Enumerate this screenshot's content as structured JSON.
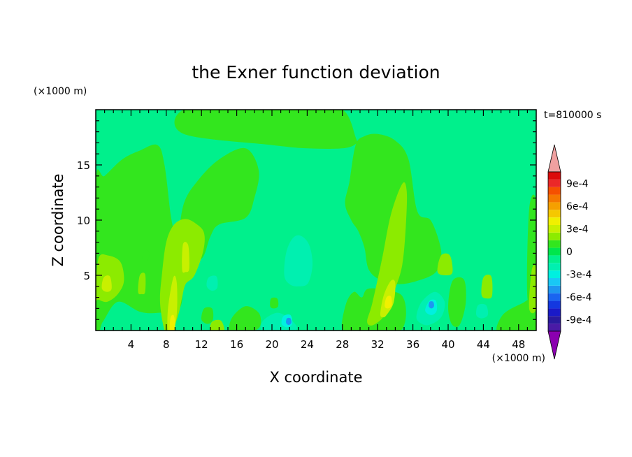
{
  "chart_data": {
    "type": "heatmap",
    "title": "the Exner function deviation",
    "xlabel": "X coordinate",
    "ylabel": "Z coordinate",
    "x_unit": "(×1000 m)",
    "y_unit": "(×1000 m)",
    "time_label": "t=810000 s",
    "xlim": [
      0,
      50
    ],
    "ylim": [
      0,
      20
    ],
    "x_ticks": [
      4,
      8,
      12,
      16,
      20,
      24,
      28,
      32,
      36,
      40,
      44,
      48
    ],
    "y_ticks": [
      5,
      10,
      15
    ],
    "colorbar": {
      "labels": [
        "9e-4",
        "6e-4",
        "3e-4",
        "0",
        "-3e-4",
        "-6e-4",
        "-9e-4"
      ],
      "label_values": [
        0.0009,
        0.0006,
        0.0003,
        0,
        -0.0003,
        -0.0006,
        -0.0009
      ],
      "levels": [
        -0.0011,
        -0.001,
        -0.0009,
        -0.0008,
        -0.0007,
        -0.0006,
        -0.0005,
        -0.0004,
        -0.0003,
        -0.0002,
        -0.0001,
        0,
        0.0001,
        0.0002,
        0.0003,
        0.0004,
        0.0005,
        0.0006,
        0.0007,
        0.0008,
        0.0009,
        0.001,
        0.0011
      ],
      "colors_low_to_high": [
        "#8b00b0",
        "#4a1aa6",
        "#2a1a9e",
        "#1a1ac8",
        "#1438e0",
        "#1a64f0",
        "#1e96f0",
        "#19c8f5",
        "#00f0e0",
        "#00f0b0",
        "#00f08c",
        "#00e64b",
        "#33e61e",
        "#8ceb00",
        "#c8f000",
        "#f0f000",
        "#f5c800",
        "#f5a000",
        "#f57800",
        "#f55000",
        "#eb2828",
        "#dc0a0a",
        "#f0a0a0"
      ]
    },
    "background_color": "#00f08c",
    "regions": [
      {
        "level": -0.0001,
        "x": [
          17.5,
          17.0,
          18.5,
          20.0,
          24.0,
          28.0,
          30.5,
          31.0,
          30.0,
          27.0,
          24.0,
          21.0
        ],
        "y": [
          0.0,
          1.5,
          2.2,
          1.8,
          1.3,
          1.3,
          1.8,
          0.8,
          0.0,
          0.0,
          0.0,
          0.0
        ]
      },
      {
        "level": -0.0001,
        "x": [
          20.0,
          20.6,
          22.0,
          23.5,
          25.2,
          26.0,
          25.8,
          25.0,
          24.0,
          22.5,
          21.2,
          20.3
        ],
        "y": [
          4.5,
          7.5,
          9.8,
          10.7,
          10.0,
          8.0,
          5.5,
          3.5,
          2.5,
          2.4,
          2.8,
          3.5
        ]
      },
      {
        "level": -0.0001,
        "x": [
          35.5,
          36.2,
          38.0,
          40.0,
          40.8,
          40.3,
          38.5,
          36.5
        ],
        "y": [
          1.5,
          3.5,
          4.7,
          4.0,
          2.2,
          0.6,
          0.2,
          0.5
        ]
      },
      {
        "level": -0.0001,
        "x": [
          12.0,
          12.2,
          13.5,
          14.5,
          14.5,
          13.2
        ],
        "y": [
          3.5,
          5.0,
          6.0,
          5.3,
          3.8,
          3.2
        ]
      },
      {
        "level": -0.0001,
        "x": [
          42.5,
          43.0,
          44.5,
          45.0,
          44.2,
          42.8
        ],
        "y": [
          1.5,
          2.8,
          2.8,
          1.5,
          0.6,
          0.8
        ]
      },
      {
        "level": -0.0001,
        "x": [
          3.0,
          3.2,
          4.0,
          4.1,
          3.5
        ],
        "y": [
          1.5,
          2.5,
          2.5,
          1.4,
          1.0
        ]
      },
      {
        "level": -0.0001,
        "x": [
          24.3,
          24.4,
          25.5,
          25.7,
          25.0
        ],
        "y": [
          3.8,
          5.0,
          4.7,
          3.8,
          3.5
        ]
      },
      {
        "level": -0.0001,
        "x": [
          10.6,
          10.8,
          11.7,
          11.8,
          11.2
        ],
        "y": [
          1.2,
          2.2,
          2.2,
          1.2,
          1.0
        ]
      },
      {
        "level": -0.0001,
        "x": [
          0.0,
          1.3,
          1.3,
          0.0
        ],
        "y": [
          0.3,
          0.3,
          1.0,
          1.0
        ]
      },
      {
        "level": -0.0001,
        "x": [
          26.5,
          26.7,
          27.8,
          27.9,
          27.2
        ],
        "y": [
          1.5,
          2.5,
          2.5,
          1.5,
          1.2
        ]
      },
      {
        "level": -0.0001,
        "x": [
          44.2,
          44.6,
          46.8,
          48.3,
          48.0,
          45.5
        ],
        "y": [
          3.0,
          4.8,
          5.2,
          4.2,
          3.0,
          2.7
        ]
      },
      {
        "level": -0.0001,
        "x": [
          29.6,
          29.8,
          30.6,
          30.7,
          30.1
        ],
        "y": [
          6.5,
          7.5,
          7.6,
          6.5,
          6.2
        ]
      },
      {
        "level": -0.0002,
        "x": [
          21.4,
          21.6,
          22.3,
          23.2,
          24.2,
          24.6,
          24.1,
          23.0,
          22.0
        ],
        "y": [
          5.0,
          7.0,
          8.3,
          8.6,
          7.8,
          6.0,
          4.3,
          4.0,
          4.2
        ]
      },
      {
        "level": -0.0002,
        "x": [
          36.4,
          37.0,
          38.5,
          39.6,
          39.2,
          37.8,
          36.8
        ],
        "y": [
          1.3,
          2.6,
          3.5,
          2.6,
          1.2,
          0.5,
          0.7
        ]
      },
      {
        "level": -0.0002,
        "x": [
          18.8,
          19.0,
          20.5,
          21.8,
          22.8,
          22.6,
          21.5,
          19.6
        ],
        "y": [
          0.0,
          0.9,
          1.6,
          1.2,
          0.4,
          0.0,
          0.0,
          0.0
        ]
      },
      {
        "level": -0.0002,
        "x": [
          43.2,
          43.4,
          44.3,
          44.5,
          43.8
        ],
        "y": [
          1.4,
          2.3,
          2.3,
          1.4,
          1.1
        ]
      },
      {
        "level": -0.0002,
        "x": [
          12.6,
          12.8,
          13.7,
          13.8,
          13.2
        ],
        "y": [
          4.0,
          4.8,
          4.9,
          3.9,
          3.6
        ]
      },
      {
        "level": -0.0003,
        "x": [
          37.4,
          37.9,
          38.6,
          38.7,
          38.1
        ],
        "y": [
          1.8,
          2.7,
          2.7,
          1.8,
          1.4
        ]
      },
      {
        "level": -0.0003,
        "x": [
          21.1,
          21.3,
          22.1,
          22.3,
          21.7
        ],
        "y": [
          0.6,
          1.3,
          1.4,
          0.6,
          0.3
        ]
      },
      {
        "level": -0.0005,
        "x": [
          37.8,
          37.9,
          38.3,
          38.4,
          38.1
        ],
        "y": [
          2.2,
          2.6,
          2.6,
          2.2,
          2.0
        ]
      },
      {
        "level": -0.0005,
        "x": [
          21.6,
          21.7,
          22.1,
          22.2,
          21.9
        ],
        "y": [
          0.7,
          1.1,
          1.1,
          0.7,
          0.5
        ]
      },
      {
        "level": 0.0001,
        "x": [
          10.0,
          9.5,
          10.0,
          11.5,
          14.0,
          17.0,
          18.5,
          18.0,
          17.0,
          14.0,
          13.0,
          12.0
        ],
        "y": [
          6.5,
          8.5,
          11.5,
          13.5,
          15.5,
          16.5,
          14.5,
          12.0,
          10.2,
          9.6,
          8.5,
          6.5
        ]
      },
      {
        "level": 0.0001,
        "x": [
          0.0,
          0.0,
          1.0,
          3.0,
          5.0,
          7.0,
          7.8,
          8.5,
          9.0,
          9.3,
          9.8,
          9.5,
          7.0,
          5.0,
          2.5,
          0.8
        ],
        "y": [
          0.0,
          13.5,
          14.0,
          15.5,
          16.3,
          16.8,
          15.0,
          10.5,
          8.5,
          6.5,
          4.5,
          2.0,
          1.6,
          1.7,
          2.6,
          0.8
        ]
      },
      {
        "level": 0.0001,
        "x": [
          10.0,
          10.0,
          17.0,
          21.0,
          24.0,
          28.0,
          29.5,
          29.5,
          28.0,
          24.0,
          20.0
        ],
        "y": [
          17.8,
          20.0,
          20.0,
          20.0,
          20.0,
          20.0,
          17.5,
          16.9,
          16.5,
          16.5,
          16.8
        ]
      },
      {
        "level": 0.0001,
        "x": [
          29.0,
          28.3,
          28.8,
          29.5,
          30.5,
          32.0,
          34.0,
          35.5,
          36.5,
          38.0,
          39.0,
          39.2,
          38.5,
          36.5,
          34.5,
          32.5,
          31.0,
          30.5,
          29.8
        ],
        "y": [
          10.0,
          11.5,
          13.5,
          16.8,
          17.6,
          17.8,
          17.2,
          15.5,
          10.8,
          10.0,
          8.0,
          6.5,
          5.2,
          4.5,
          4.2,
          4.5,
          5.5,
          7.5,
          9.0
        ]
      },
      {
        "level": 0.0001,
        "x": [
          28.0,
          28.4,
          29.3,
          30.2,
          31.0,
          34.0,
          35.0,
          35.2,
          34.6,
          33.0,
          31.5,
          30.0
        ],
        "y": [
          0.0,
          2.4,
          3.5,
          3.0,
          3.8,
          3.5,
          2.8,
          1.2,
          0.0,
          0.0,
          0.0,
          0.0
        ]
      },
      {
        "level": 0.0001,
        "x": [
          45.5,
          46.3,
          48.5,
          50.0,
          50.0,
          48.8,
          47.0
        ],
        "y": [
          0.0,
          1.5,
          2.5,
          3.0,
          0.0,
          0.0,
          0.0
        ]
      },
      {
        "level": 0.0001,
        "x": [
          15.2,
          15.5,
          17.0,
          18.5,
          18.7,
          18.0,
          16.5
        ],
        "y": [
          0.0,
          1.2,
          2.2,
          1.6,
          0.5,
          0.0,
          0.0
        ]
      },
      {
        "level": 0.0001,
        "x": [
          40.0,
          40.5,
          41.8,
          42.0,
          41.3,
          40.4
        ],
        "y": [
          2.2,
          4.5,
          4.6,
          2.5,
          0.5,
          0.6
        ]
      },
      {
        "level": 0.0001,
        "x": [
          49.0,
          49.2,
          50.0,
          50.0
        ],
        "y": [
          3.0,
          11.0,
          11.5,
          3.0
        ]
      },
      {
        "level": 0.0001,
        "x": [
          12.0,
          12.3,
          13.2,
          13.3,
          12.7
        ],
        "y": [
          1.0,
          2.0,
          2.0,
          1.0,
          0.6
        ]
      },
      {
        "level": 0.0002,
        "x": [
          7.8,
          7.3,
          7.5,
          8.0,
          8.9,
          10.2,
          11.5,
          12.3,
          12.2,
          11.2,
          10.2,
          9.8,
          9.4,
          8.7,
          8.2
        ],
        "y": [
          0.0,
          2.5,
          5.0,
          8.0,
          9.6,
          10.1,
          9.6,
          8.8,
          7.2,
          5.0,
          4.2,
          3.0,
          1.5,
          0.0,
          0.0
        ]
      },
      {
        "level": 0.0002,
        "x": [
          0.0,
          0.3,
          1.4,
          2.8,
          3.2,
          2.5,
          1.3,
          0.3
        ],
        "y": [
          3.0,
          6.5,
          6.8,
          6.2,
          4.5,
          3.3,
          2.6,
          2.8
        ]
      },
      {
        "level": 0.0002,
        "x": [
          30.8,
          31.4,
          32.5,
          33.5,
          34.8,
          35.3,
          35.2,
          34.8,
          34.0,
          32.9,
          31.5
        ],
        "y": [
          0.8,
          2.5,
          6.5,
          10.5,
          13.3,
          12.6,
          9.5,
          6.0,
          3.8,
          1.5,
          0.5
        ]
      },
      {
        "level": 0.0002,
        "x": [
          38.8,
          39.2,
          40.2,
          40.5,
          39.8
        ],
        "y": [
          5.3,
          6.8,
          6.8,
          5.3,
          5.0
        ]
      },
      {
        "level": 0.0002,
        "x": [
          43.8,
          44.0,
          44.9,
          45.0,
          44.5
        ],
        "y": [
          3.2,
          4.8,
          4.9,
          3.2,
          2.9
        ]
      },
      {
        "level": 0.0002,
        "x": [
          4.8,
          5.0,
          5.6,
          5.6,
          5.2
        ],
        "y": [
          3.5,
          5.0,
          5.1,
          3.5,
          3.3
        ]
      },
      {
        "level": 0.0002,
        "x": [
          49.2,
          49.5,
          50.0,
          50.0
        ],
        "y": [
          2.0,
          5.5,
          5.5,
          2.0
        ]
      },
      {
        "level": 0.0002,
        "x": [
          13.0,
          13.2,
          14.2,
          14.6,
          14.0
        ],
        "y": [
          0.0,
          0.8,
          0.9,
          0.0,
          0.0
        ]
      },
      {
        "level": 0.0003,
        "x": [
          8.2,
          8.2,
          8.8,
          9.2,
          9.2,
          8.8
        ],
        "y": [
          0.0,
          2.0,
          4.8,
          4.3,
          1.5,
          0.0
        ]
      },
      {
        "level": 0.0003,
        "x": [
          9.8,
          9.9,
          10.5,
          10.6,
          10.2
        ],
        "y": [
          5.5,
          7.8,
          7.7,
          5.6,
          5.3
        ]
      },
      {
        "level": 0.0003,
        "x": [
          32.3,
          32.7,
          33.5,
          34.0,
          33.8,
          33.0,
          32.6
        ],
        "y": [
          1.5,
          3.2,
          4.5,
          4.3,
          2.5,
          1.4,
          1.2
        ]
      },
      {
        "level": 0.0003,
        "x": [
          0.7,
          0.9,
          1.6,
          1.8,
          1.3
        ],
        "y": [
          3.8,
          4.8,
          4.9,
          3.8,
          3.5
        ]
      },
      {
        "level": 0.0004,
        "x": [
          8.4,
          8.5,
          8.9,
          9.0,
          8.7
        ],
        "y": [
          0.0,
          1.2,
          1.3,
          0.0,
          0.0
        ]
      },
      {
        "level": 0.0004,
        "x": [
          32.8,
          33.0,
          33.5,
          33.6,
          33.2
        ],
        "y": [
          2.2,
          3.0,
          3.1,
          2.3,
          2.0
        ]
      },
      {
        "level": 0.0001,
        "x": [
          19.8,
          19.9,
          20.6,
          20.7,
          20.2
        ],
        "y": [
          2.2,
          2.9,
          2.9,
          2.2,
          2.0
        ]
      },
      {
        "level": 0.0001,
        "x": [
          5.3,
          5.5,
          6.0,
          6.0,
          5.6
        ],
        "y": [
          6.5,
          7.2,
          7.2,
          6.5,
          6.3
        ]
      }
    ]
  }
}
